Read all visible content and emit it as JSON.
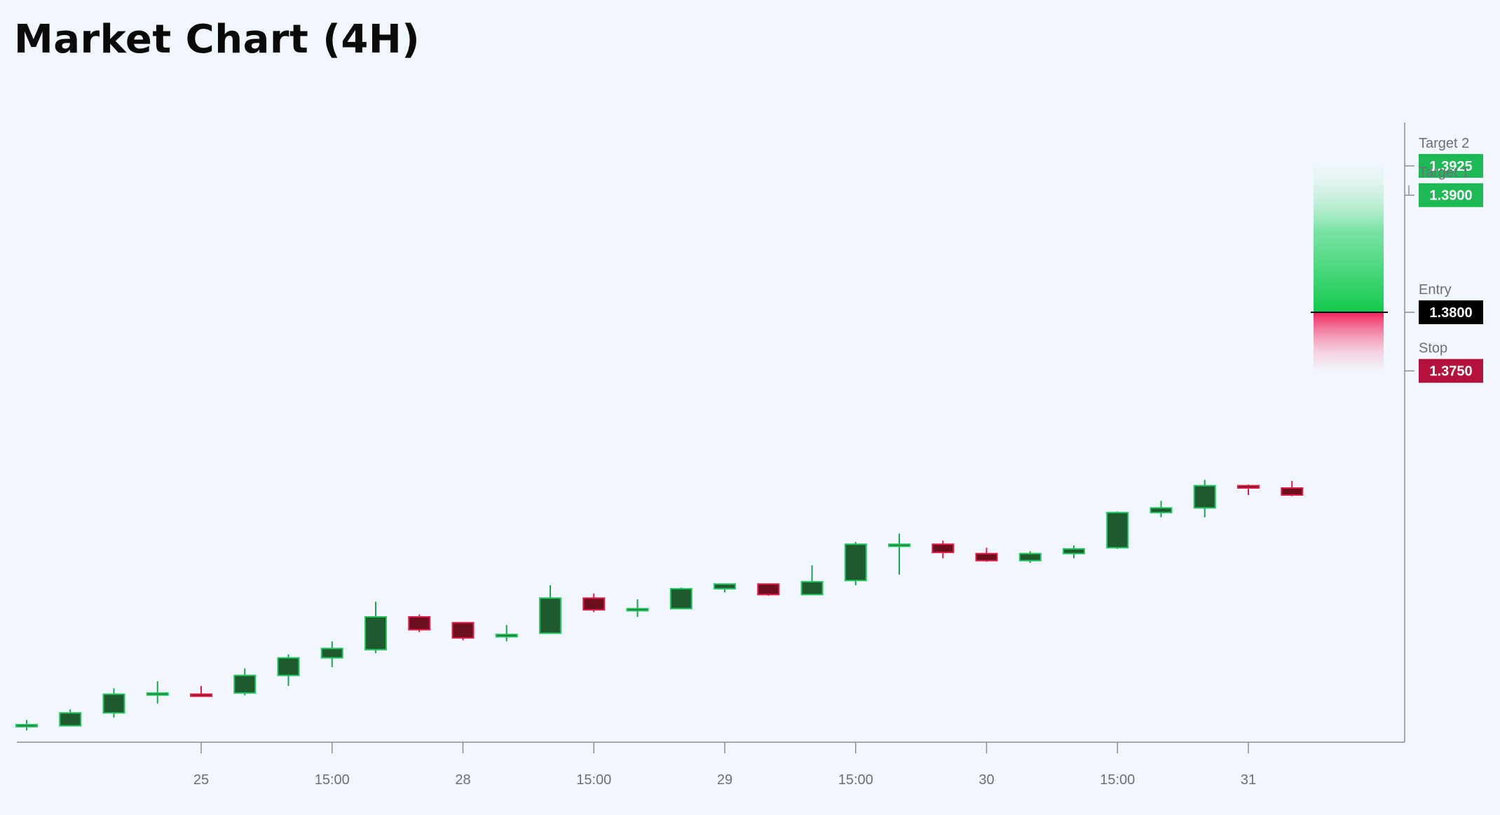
{
  "title": "Market Chart (4H)",
  "chart_data": {
    "type": "candlestick",
    "title": "Market Chart (4H)",
    "timeframe": "4H",
    "x_ticks": [
      {
        "index": 4,
        "label": "25"
      },
      {
        "index": 7,
        "label": "15:00"
      },
      {
        "index": 10,
        "label": "28"
      },
      {
        "index": 13,
        "label": "15:00"
      },
      {
        "index": 16,
        "label": "29"
      },
      {
        "index": 19,
        "label": "15:00"
      },
      {
        "index": 22,
        "label": "30"
      },
      {
        "index": 25,
        "label": "15:00"
      },
      {
        "index": 28,
        "label": "31"
      }
    ],
    "ylim": [
      1.3433,
      1.3962
    ],
    "candles": [
      {
        "o": 1.3447,
        "h": 1.3452,
        "l": 1.3443,
        "c": 1.3448
      },
      {
        "o": 1.3447,
        "h": 1.3461,
        "l": 1.3447,
        "c": 1.3458
      },
      {
        "o": 1.3458,
        "h": 1.3479,
        "l": 1.3454,
        "c": 1.3474
      },
      {
        "o": 1.3474,
        "h": 1.3485,
        "l": 1.3466,
        "c": 1.3475
      },
      {
        "o": 1.3474,
        "h": 1.3481,
        "l": 1.3472,
        "c": 1.3473
      },
      {
        "o": 1.3475,
        "h": 1.3496,
        "l": 1.3473,
        "c": 1.349
      },
      {
        "o": 1.349,
        "h": 1.3508,
        "l": 1.3481,
        "c": 1.3505
      },
      {
        "o": 1.3505,
        "h": 1.3519,
        "l": 1.3497,
        "c": 1.3513
      },
      {
        "o": 1.3512,
        "h": 1.3553,
        "l": 1.3509,
        "c": 1.354
      },
      {
        "o": 1.354,
        "h": 1.3542,
        "l": 1.3527,
        "c": 1.3529
      },
      {
        "o": 1.3535,
        "h": 1.3535,
        "l": 1.352,
        "c": 1.3522
      },
      {
        "o": 1.3523,
        "h": 1.3533,
        "l": 1.3519,
        "c": 1.3525
      },
      {
        "o": 1.3526,
        "h": 1.3567,
        "l": 1.3526,
        "c": 1.3556
      },
      {
        "o": 1.3556,
        "h": 1.356,
        "l": 1.3544,
        "c": 1.3546
      },
      {
        "o": 1.3546,
        "h": 1.3555,
        "l": 1.354,
        "c": 1.3547
      },
      {
        "o": 1.3547,
        "h": 1.3565,
        "l": 1.3547,
        "c": 1.3564
      },
      {
        "o": 1.3564,
        "h": 1.3568,
        "l": 1.3561,
        "c": 1.3568
      },
      {
        "o": 1.3568,
        "h": 1.3568,
        "l": 1.3558,
        "c": 1.3559
      },
      {
        "o": 1.3559,
        "h": 1.3584,
        "l": 1.3559,
        "c": 1.357
      },
      {
        "o": 1.3571,
        "h": 1.3604,
        "l": 1.3567,
        "c": 1.3602
      },
      {
        "o": 1.3602,
        "h": 1.3611,
        "l": 1.3576,
        "c": 1.3602
      },
      {
        "o": 1.3602,
        "h": 1.3605,
        "l": 1.359,
        "c": 1.3595
      },
      {
        "o": 1.3594,
        "h": 1.3599,
        "l": 1.3587,
        "c": 1.3588
      },
      {
        "o": 1.3588,
        "h": 1.3596,
        "l": 1.3586,
        "c": 1.3594
      },
      {
        "o": 1.3594,
        "h": 1.3601,
        "l": 1.359,
        "c": 1.3598
      },
      {
        "o": 1.3599,
        "h": 1.363,
        "l": 1.3598,
        "c": 1.3629
      },
      {
        "o": 1.3629,
        "h": 1.3639,
        "l": 1.3625,
        "c": 1.3633
      },
      {
        "o": 1.3633,
        "h": 1.3657,
        "l": 1.3625,
        "c": 1.3652
      },
      {
        "o": 1.3652,
        "h": 1.3653,
        "l": 1.3644,
        "c": 1.365
      },
      {
        "o": 1.365,
        "h": 1.3656,
        "l": 1.3643,
        "c": 1.3644
      }
    ],
    "levels": [
      {
        "name": "Target 2",
        "value": "1.3925",
        "color": "#1db954"
      },
      {
        "name": "Target 1",
        "value": "1.3900",
        "color": "#1db954"
      },
      {
        "name": "Entry",
        "value": "1.3800",
        "color": "#000000"
      },
      {
        "name": "Stop",
        "value": "1.3750",
        "color": "#b5113d"
      }
    ],
    "colors": {
      "up_body": "#1f5a2e",
      "up_border": "#22c55e",
      "up_wick": "#18a84a",
      "down_body": "#6b0f1e",
      "down_border": "#e11d48",
      "down_wick": "#e11d48",
      "axis": "#8a8f99",
      "background": "#f2f6fe",
      "profit_zone": "#22c55e",
      "loss_zone": "#f43f6e"
    }
  }
}
